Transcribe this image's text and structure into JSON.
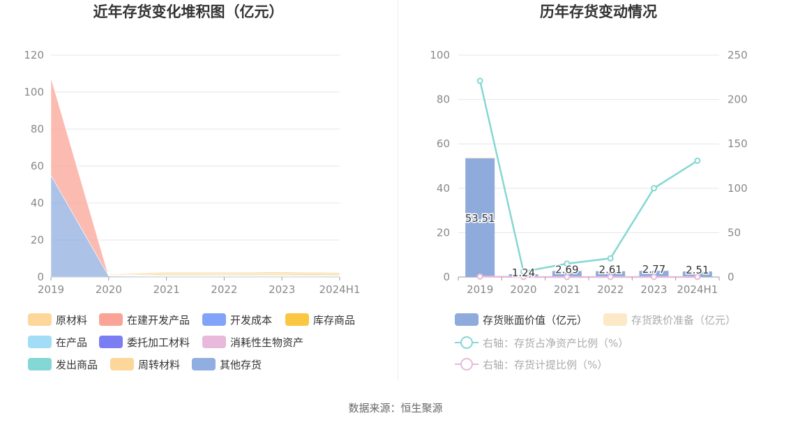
{
  "source": "数据来源：恒生聚源",
  "chart_data": [
    {
      "type": "area",
      "title": "近年存货变化堆积图（亿元）",
      "x": [
        "2019",
        "2020",
        "2021",
        "2022",
        "2023",
        "2024H1"
      ],
      "ylim": [
        0,
        120
      ],
      "yticks": [
        0,
        20,
        40,
        60,
        80,
        100,
        120
      ],
      "grid": true,
      "legend_position": "bottom",
      "series": [
        {
          "name": "原材料",
          "color": "#fdd799",
          "values": [
            0,
            0.5,
            1.0,
            1.0,
            1.1,
            1.0
          ]
        },
        {
          "name": "在建开发产品",
          "color": "#f9a497",
          "values": [
            53.0,
            0,
            0,
            0,
            0,
            0
          ]
        },
        {
          "name": "开发成本",
          "color": "#82a3f7",
          "values": [
            0,
            0,
            0,
            0,
            0,
            0
          ]
        },
        {
          "name": "库存商品",
          "color": "#fbc743",
          "values": [
            0,
            0.2,
            0.6,
            0.5,
            0.6,
            0.5
          ]
        },
        {
          "name": "在产品",
          "color": "#a3dcf6",
          "values": [
            0,
            0.2,
            0.3,
            0.3,
            0.3,
            0.3
          ]
        },
        {
          "name": "委托加工材料",
          "color": "#7b7ef3",
          "values": [
            0,
            0,
            0,
            0,
            0,
            0
          ]
        },
        {
          "name": "消耗性生物资产",
          "color": "#e8b9db",
          "values": [
            0,
            0,
            0,
            0,
            0,
            0
          ]
        },
        {
          "name": "发出商品",
          "color": "#84d7d4",
          "values": [
            0,
            0.2,
            0.4,
            0.4,
            0.4,
            0.4
          ]
        },
        {
          "name": "周转材料",
          "color": "#fdd799",
          "values": [
            0,
            0,
            0,
            0,
            0,
            0
          ]
        },
        {
          "name": "其他存货",
          "color": "#90aedf",
          "values": [
            55.0,
            0.5,
            0.4,
            0.4,
            0.4,
            0.3
          ]
        }
      ]
    },
    {
      "type": "bar+line",
      "title": "历年存货变动情况",
      "categories": [
        "2019",
        "2020",
        "2021",
        "2022",
        "2023",
        "2024H1"
      ],
      "ylim_left": [
        0,
        100
      ],
      "yticks_left": [
        0,
        20,
        40,
        60,
        80,
        100
      ],
      "ylim_right": [
        0,
        250
      ],
      "yticks_right": [
        0,
        50,
        100,
        150,
        200,
        250
      ],
      "grid": true,
      "legend_position": "bottom",
      "bars": [
        {
          "name": "存货账面价值（亿元）",
          "color": "#8eabdc",
          "values": [
            53.51,
            1.24,
            2.69,
            2.61,
            2.77,
            2.51
          ],
          "labels": [
            "53.51",
            "1.24",
            "2.69",
            "2.61",
            "2.77",
            "2.51"
          ]
        },
        {
          "name": "存货跌价准备（亿元）",
          "color": "#fde8c8",
          "values": [
            0.3,
            0,
            0,
            0,
            0,
            0
          ]
        }
      ],
      "lines": [
        {
          "name": "右轴：存货占净资产比例（%）",
          "color": "#84d7d4",
          "values": [
            221,
            6,
            15,
            21,
            100,
            131
          ]
        },
        {
          "name": "右轴：存货计提比例（%）",
          "color": "#e8b9db",
          "values": [
            0.5,
            0,
            0,
            0,
            0,
            0
          ]
        }
      ]
    }
  ]
}
